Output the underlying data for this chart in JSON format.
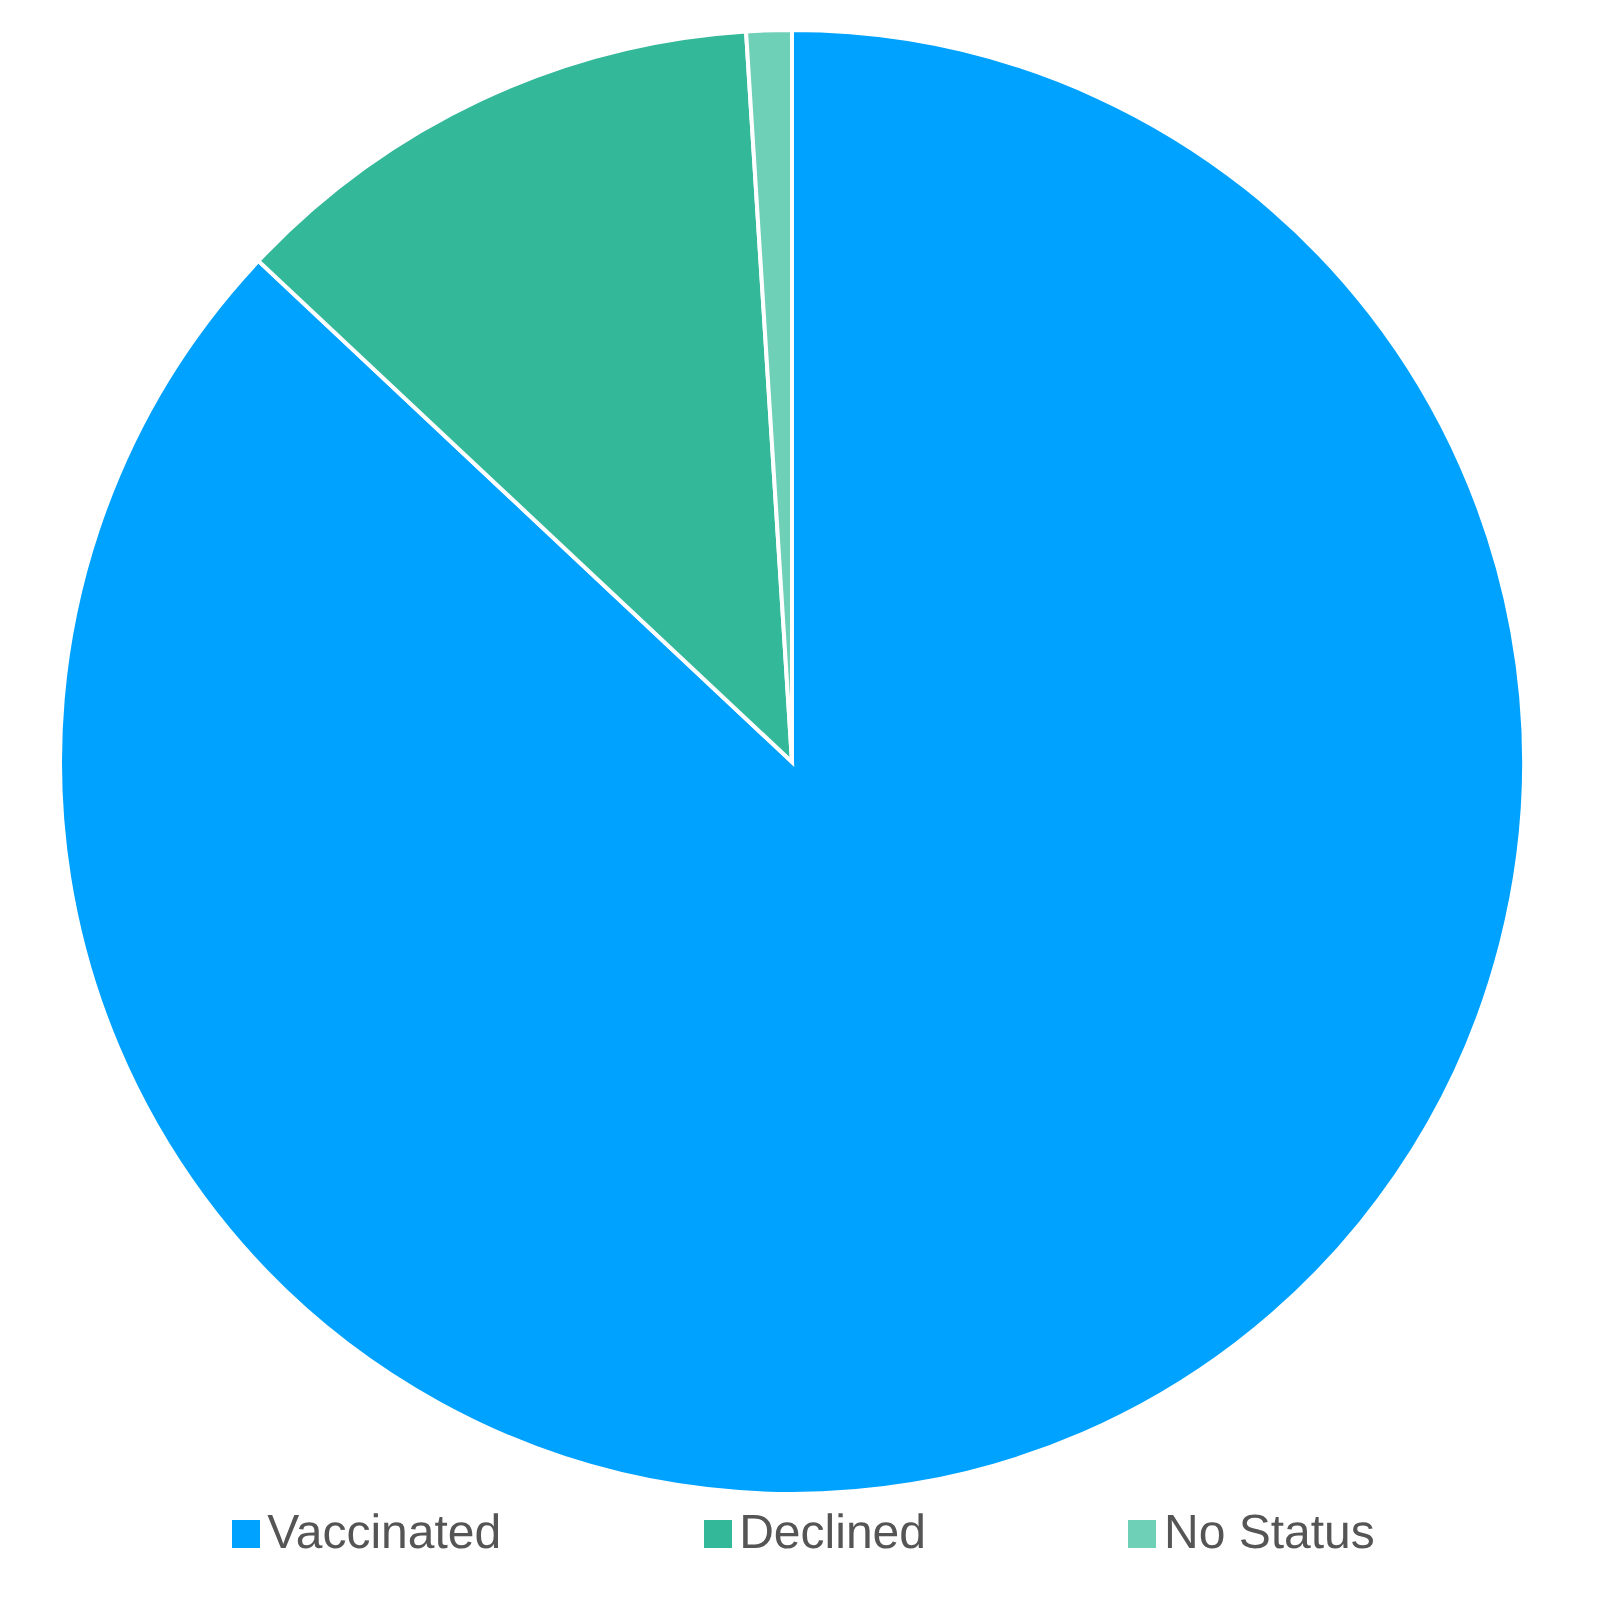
{
  "chart_data": {
    "type": "pie",
    "categories": [
      "Vaccinated",
      "Declined",
      "No Status"
    ],
    "values": [
      87,
      12,
      1
    ],
    "colors": [
      "#00a2ff",
      "#33b89a",
      "#6fd0b8"
    ],
    "legend": "bottom"
  }
}
